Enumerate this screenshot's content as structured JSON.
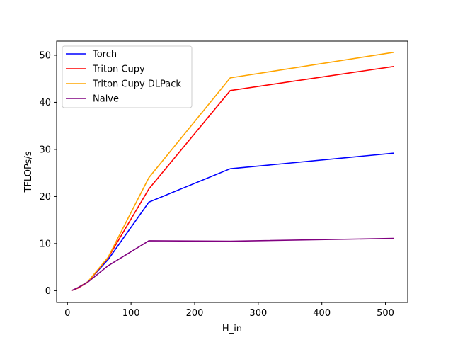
{
  "chart_data": {
    "type": "line",
    "title": "",
    "xlabel": "H_in",
    "ylabel": "TFLOPs/s",
    "xlim": [
      -17,
      535
    ],
    "ylim": [
      -2.5,
      53
    ],
    "xticks": [
      0,
      100,
      200,
      300,
      400,
      500
    ],
    "yticks": [
      0,
      10,
      20,
      30,
      40,
      50
    ],
    "grid": false,
    "legend_position": "top-left",
    "x": [
      8,
      16,
      32,
      64,
      128,
      256,
      512
    ],
    "series": [
      {
        "name": "Torch",
        "color": "#0000ff",
        "values": [
          0.1,
          0.6,
          1.9,
          6.6,
          18.8,
          25.9,
          29.2
        ]
      },
      {
        "name": "Triton Cupy",
        "color": "#ff0000",
        "values": [
          0.1,
          0.5,
          1.8,
          7.0,
          21.6,
          42.5,
          47.6
        ]
      },
      {
        "name": "Triton Cupy DLPack",
        "color": "#ffa500",
        "values": [
          0.1,
          0.6,
          1.9,
          7.1,
          24.0,
          45.2,
          50.6
        ]
      },
      {
        "name": "Naive",
        "color": "#800080",
        "values": [
          0.1,
          0.6,
          1.8,
          5.3,
          10.6,
          10.5,
          11.1
        ]
      }
    ]
  }
}
